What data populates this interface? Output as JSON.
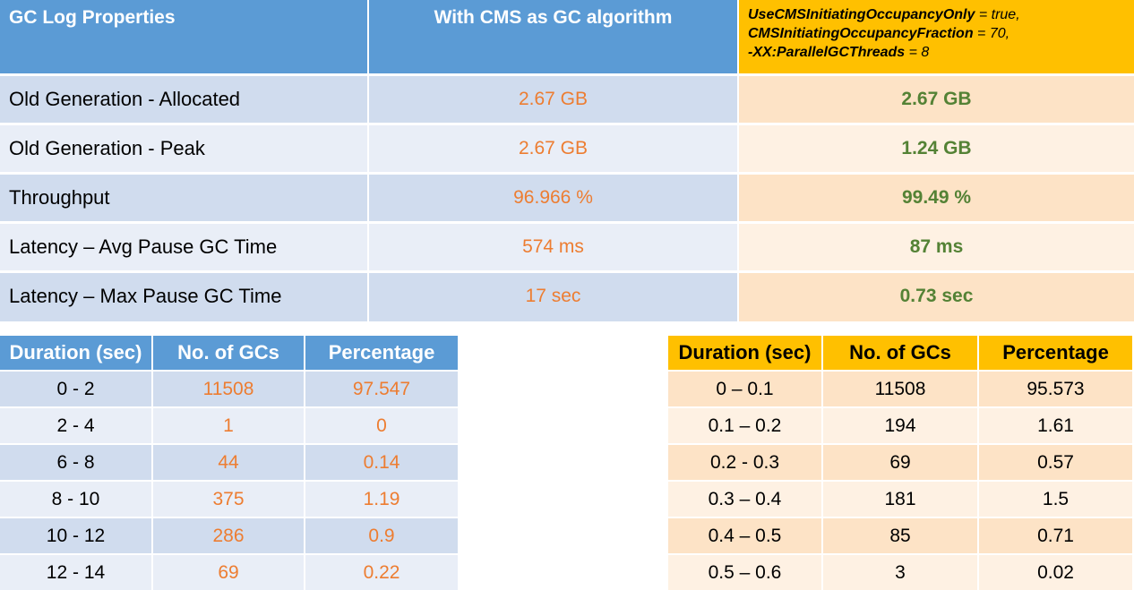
{
  "comparison": {
    "headers": {
      "property": "GC Log Properties",
      "cms": "With CMS as GC algorithm",
      "tuned_line1_bold": "UseCMSInitiatingOccupancyOnly",
      "tuned_line1_rest": " = true,",
      "tuned_line2_bold": "CMSInitiatingOccupancyFraction",
      "tuned_line2_rest": " = 70,",
      "tuned_line3_bold": "-XX:ParallelGCThreads",
      "tuned_line3_rest": " = 8"
    },
    "rows": [
      {
        "property": "Old Generation - Allocated",
        "cms": "2.67 GB",
        "tuned": "2.67 GB"
      },
      {
        "property": "Old Generation - Peak",
        "cms": "2.67 GB",
        "tuned": "1.24 GB"
      },
      {
        "property": "Throughput",
        "cms": "96.966 %",
        "tuned": "99.49 %"
      },
      {
        "property": "Latency – Avg Pause GC Time",
        "cms": "574 ms",
        "tuned": "87 ms"
      },
      {
        "property": "Latency – Max Pause GC Time",
        "cms": "17 sec",
        "tuned": "0.73 sec"
      }
    ]
  },
  "cms_distribution": {
    "headers": [
      "Duration (sec)",
      "No. of GCs",
      "Percentage"
    ],
    "rows": [
      [
        "0 - 2",
        "11508",
        "97.547"
      ],
      [
        "2 - 4",
        "1",
        "0"
      ],
      [
        "6 - 8",
        "44",
        "0.14"
      ],
      [
        "8 - 10",
        "375",
        "1.19"
      ],
      [
        "10 - 12",
        "286",
        "0.9"
      ],
      [
        "12 - 14",
        "69",
        "0.22"
      ]
    ]
  },
  "tuned_distribution": {
    "headers": [
      "Duration (sec)",
      "No. of GCs",
      "Percentage"
    ],
    "rows": [
      [
        "0 – 0.1",
        "11508",
        "95.573"
      ],
      [
        "0.1 – 0.2",
        "194",
        "1.61"
      ],
      [
        "0.2 - 0.3",
        "69",
        "0.57"
      ],
      [
        "0.3 – 0.4",
        "181",
        "1.5"
      ],
      [
        "0.4 – 0.5",
        "85",
        "0.71"
      ],
      [
        "0.5 – 0.6",
        "3",
        "0.02"
      ]
    ]
  },
  "colors": {
    "header_blue": "#5b9bd5",
    "header_gold": "#ffc000",
    "value_orange": "#ed7d31",
    "value_green": "#548235"
  }
}
